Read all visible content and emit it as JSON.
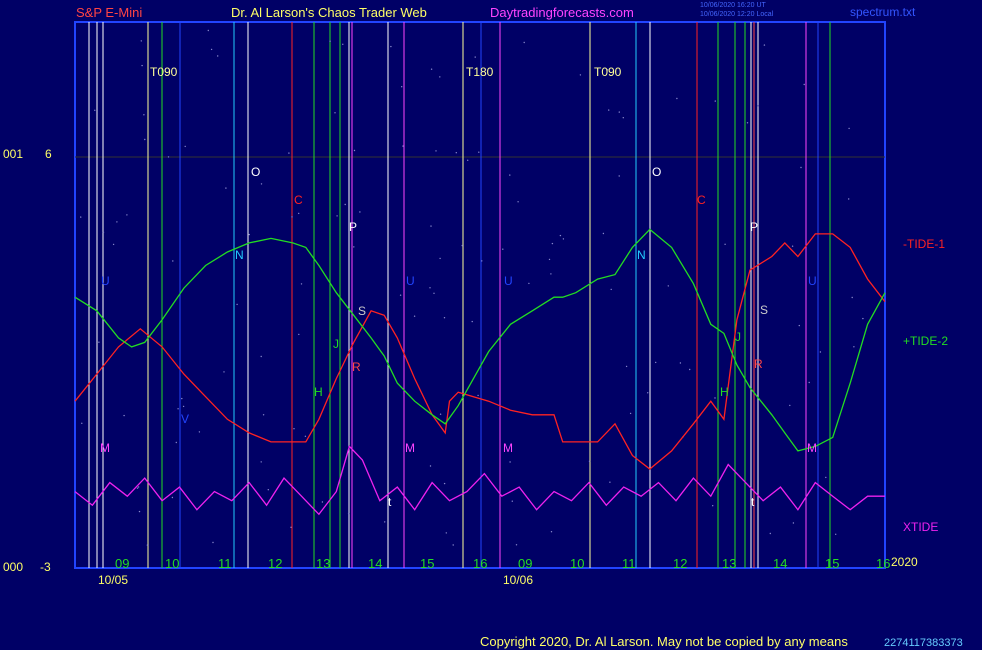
{
  "header": {
    "symbol": "S&P E-Mini",
    "title": "Dr. Al Larson's Chaos Trader Web",
    "site": "Daytradingforecasts.com",
    "time_line_1": "10/06/2020 16:20 UT",
    "time_line_2": "10/06/2020 12:20 Local",
    "file": "spectrum.txt"
  },
  "footer": {
    "copyright": "Copyright 2020, Dr. Al Larson. May not be copied by any means",
    "stamp": "2274117383373"
  },
  "colors": {
    "background": "#000066",
    "frame": "#2244ff",
    "tide1": "#ff2222",
    "tide2": "#22dd22",
    "xtide": "#ee22ee",
    "hours": "#22dd22",
    "title": "#ffff66",
    "symbol": "#ff4444",
    "site": "#ff44ff"
  },
  "chart_data": {
    "type": "line",
    "title": "S&P E-Mini",
    "ylim": [
      -3,
      6
    ],
    "ytick_labels": [
      {
        "value": 6,
        "left": "001",
        "right": "6"
      },
      {
        "value": -3,
        "left": "000",
        "right": "-3"
      }
    ],
    "x_hour_labels": [
      "09",
      "10",
      "11",
      "12",
      "13",
      "14",
      "15",
      "16",
      "09",
      "10",
      "11",
      "12",
      "13",
      "14",
      "15",
      "16"
    ],
    "x_date_labels": [
      "10/05",
      "10/06"
    ],
    "year_label": "2020",
    "time_range_hours": [
      8,
      40
    ],
    "series": [
      {
        "name": "-TIDE-1",
        "color": "#ff2222",
        "points": [
          [
            8,
            0.6
          ],
          [
            8.5,
            1.2
          ],
          [
            9,
            1.8
          ],
          [
            9.5,
            2.2
          ],
          [
            10,
            1.8
          ],
          [
            10.5,
            1.2
          ],
          [
            11,
            0.7
          ],
          [
            11.5,
            0.2
          ],
          [
            12,
            -0.1
          ],
          [
            12.5,
            -0.3
          ],
          [
            13,
            -0.3
          ],
          [
            13.3,
            -0.3
          ],
          [
            13.6,
            0.2
          ],
          [
            14,
            1.1
          ],
          [
            14.4,
            1.9
          ],
          [
            14.8,
            2.6
          ],
          [
            15.1,
            2.5
          ],
          [
            15.4,
            2.0
          ],
          [
            15.8,
            1.1
          ],
          [
            16.2,
            0.3
          ],
          [
            16.5,
            -0.1
          ],
          [
            16.6,
            0.6
          ],
          [
            16.8,
            0.8
          ],
          [
            17.5,
            0.6
          ],
          [
            18,
            0.4
          ],
          [
            18.5,
            0.3
          ],
          [
            19,
            0.3
          ],
          [
            19.2,
            -0.3
          ],
          [
            19.5,
            -0.3
          ],
          [
            20,
            -0.3
          ],
          [
            20.4,
            0.1
          ],
          [
            20.8,
            -0.6
          ],
          [
            21.2,
            -0.9
          ],
          [
            21.7,
            -0.5
          ],
          [
            22.2,
            0.1
          ],
          [
            22.6,
            0.6
          ],
          [
            22.9,
            0.2
          ],
          [
            23.2,
            2.4
          ],
          [
            23.5,
            3.5
          ],
          [
            24,
            3.8
          ],
          [
            24.3,
            4.1
          ],
          [
            24.6,
            3.8
          ],
          [
            25,
            4.3
          ],
          [
            25.4,
            4.3
          ],
          [
            25.8,
            4.0
          ],
          [
            26.2,
            3.3
          ],
          [
            26.6,
            2.8
          ]
        ]
      },
      {
        "name": "+TIDE-2",
        "color": "#22dd22",
        "points": [
          [
            8,
            2.9
          ],
          [
            8.5,
            2.6
          ],
          [
            9,
            2.0
          ],
          [
            9.3,
            1.8
          ],
          [
            9.6,
            1.9
          ],
          [
            10,
            2.4
          ],
          [
            10.5,
            3.1
          ],
          [
            11,
            3.6
          ],
          [
            11.5,
            3.9
          ],
          [
            12,
            4.1
          ],
          [
            12.5,
            4.2
          ],
          [
            13,
            4.1
          ],
          [
            13.3,
            4.0
          ],
          [
            13.6,
            3.6
          ],
          [
            14,
            3.0
          ],
          [
            14.4,
            2.5
          ],
          [
            14.8,
            2.0
          ],
          [
            15.1,
            1.6
          ],
          [
            15.4,
            1.0
          ],
          [
            15.8,
            0.6
          ],
          [
            16.2,
            0.3
          ],
          [
            16.5,
            0.1
          ],
          [
            16.8,
            0.5
          ],
          [
            17.5,
            1.7
          ],
          [
            18,
            2.3
          ],
          [
            18.5,
            2.6
          ],
          [
            19,
            2.9
          ],
          [
            19.2,
            2.9
          ],
          [
            19.5,
            3.0
          ],
          [
            20,
            3.3
          ],
          [
            20.4,
            3.4
          ],
          [
            20.8,
            4.0
          ],
          [
            21.2,
            4.4
          ],
          [
            21.7,
            4.0
          ],
          [
            22.2,
            3.2
          ],
          [
            22.6,
            2.3
          ],
          [
            22.9,
            2.1
          ],
          [
            23.2,
            1.4
          ],
          [
            23.5,
            0.9
          ],
          [
            24,
            0.3
          ],
          [
            24.3,
            -0.1
          ],
          [
            24.6,
            -0.5
          ],
          [
            25,
            -0.4
          ],
          [
            25.4,
            -0.2
          ],
          [
            25.8,
            1.0
          ],
          [
            26.2,
            2.3
          ],
          [
            26.6,
            3.0
          ]
        ]
      },
      {
        "name": "XTIDE",
        "color": "#ee22ee",
        "points": [
          [
            8,
            -1.4
          ],
          [
            8.4,
            -1.7
          ],
          [
            8.8,
            -1.2
          ],
          [
            9.2,
            -1.5
          ],
          [
            9.6,
            -1.1
          ],
          [
            10,
            -1.6
          ],
          [
            10.4,
            -1.3
          ],
          [
            10.8,
            -1.8
          ],
          [
            11.2,
            -1.4
          ],
          [
            11.6,
            -1.6
          ],
          [
            12,
            -1.2
          ],
          [
            12.4,
            -1.7
          ],
          [
            12.8,
            -1.1
          ],
          [
            13.2,
            -1.5
          ],
          [
            13.6,
            -1.9
          ],
          [
            14,
            -1.4
          ],
          [
            14.3,
            -0.4
          ],
          [
            14.6,
            -0.7
          ],
          [
            15,
            -1.6
          ],
          [
            15.4,
            -1.3
          ],
          [
            15.8,
            -1.8
          ],
          [
            16.2,
            -1.2
          ],
          [
            16.6,
            -1.6
          ],
          [
            17,
            -1.4
          ],
          [
            17.4,
            -1.0
          ],
          [
            17.8,
            -1.5
          ],
          [
            18.2,
            -1.3
          ],
          [
            18.6,
            -1.8
          ],
          [
            19,
            -1.4
          ],
          [
            19.4,
            -1.6
          ],
          [
            19.8,
            -1.2
          ],
          [
            20.2,
            -1.7
          ],
          [
            20.6,
            -1.3
          ],
          [
            21,
            -1.5
          ],
          [
            21.4,
            -1.2
          ],
          [
            21.8,
            -1.6
          ],
          [
            22.2,
            -1.1
          ],
          [
            22.6,
            -1.5
          ],
          [
            23,
            -0.8
          ],
          [
            23.4,
            -1.2
          ],
          [
            23.8,
            -1.6
          ],
          [
            24.2,
            -1.3
          ],
          [
            24.6,
            -1.8
          ],
          [
            25,
            -1.2
          ],
          [
            25.4,
            -1.5
          ],
          [
            25.8,
            -1.8
          ],
          [
            26.2,
            -1.5
          ],
          [
            26.6,
            -1.5
          ]
        ]
      }
    ],
    "series_labels": [
      "-TIDE-1",
      "+TIDE-2",
      "XTIDE"
    ],
    "vertical_markers": [
      {
        "label": "T090",
        "color": "#ffff99"
      },
      {
        "label": "T180",
        "color": "#ffff99"
      },
      {
        "label": "T090",
        "color": "#ffff99"
      }
    ],
    "planet_letters": [
      "U",
      "V",
      "M",
      "N",
      "O",
      "C",
      "H",
      "P",
      "S",
      "R",
      "J",
      "t",
      "U",
      "M",
      "M",
      "U",
      "N",
      "O",
      "C",
      "H",
      "J",
      "P",
      "S",
      "R",
      "U",
      "M",
      "t"
    ]
  }
}
